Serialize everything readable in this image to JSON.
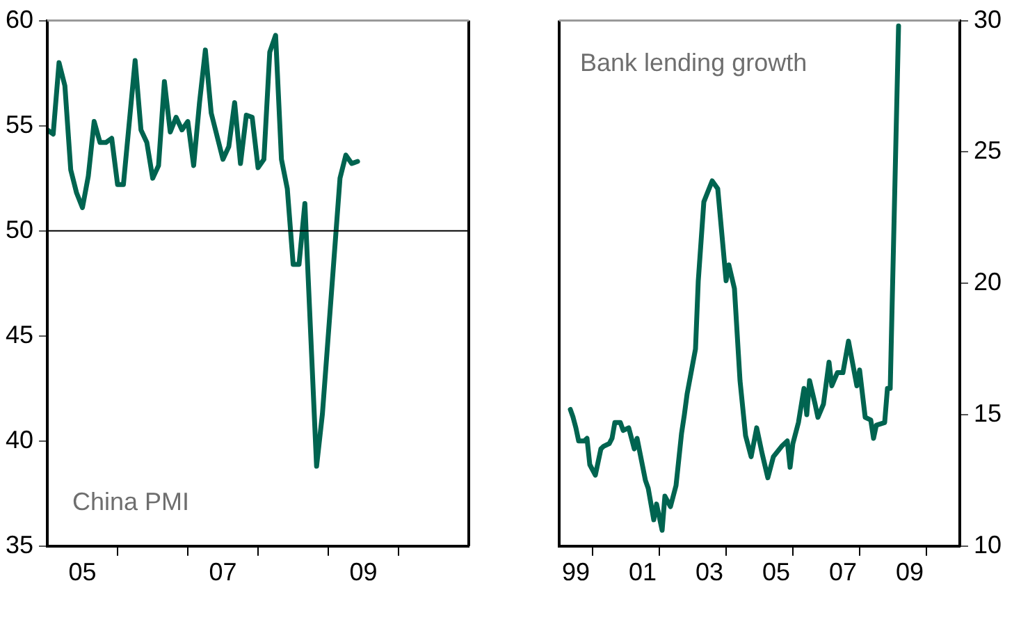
{
  "chart_data": [
    {
      "type": "line",
      "title": "China PMI",
      "xlim": [
        "2005",
        "2011"
      ],
      "ylim": [
        35,
        60
      ],
      "xticks": [
        {
          "value": "2005-07",
          "label": "05"
        },
        {
          "value": "2006",
          "label": null
        },
        {
          "value": "2007",
          "label": null
        },
        {
          "value": "2007-07",
          "label": "07"
        },
        {
          "value": "2008",
          "label": null
        },
        {
          "value": "2009",
          "label": null
        },
        {
          "value": "2009-07",
          "label": "09"
        },
        {
          "value": "2010",
          "label": null
        }
      ],
      "yticks": [
        35,
        40,
        45,
        50,
        55,
        60
      ],
      "grid": false,
      "legend": false,
      "marker": "none",
      "line_style": "solid",
      "ref_lines": [
        {
          "axis": "y",
          "value": 50,
          "color": "#000000"
        }
      ],
      "series": [
        {
          "color": "#006450",
          "x": [
            "2005-01",
            "2005-02",
            "2005-03",
            "2005-04",
            "2005-05",
            "2005-06",
            "2005-07",
            "2005-08",
            "2005-09",
            "2005-10",
            "2005-11",
            "2005-12",
            "2006-01",
            "2006-02",
            "2006-04",
            "2006-05",
            "2006-06",
            "2006-07",
            "2006-08",
            "2006-09",
            "2006-10",
            "2006-11",
            "2006-12",
            "2007-01",
            "2007-02",
            "2007-03",
            "2007-04",
            "2007-05",
            "2007-07",
            "2007-08",
            "2007-09",
            "2007-10",
            "2007-11",
            "2007-12",
            "2008-01",
            "2008-02",
            "2008-03",
            "2008-04",
            "2008-05",
            "2008-06",
            "2008-07",
            "2008-08",
            "2008-09",
            "2008-11",
            "2008-12",
            "2009-03",
            "2009-04",
            "2009-05",
            "2009-06"
          ],
          "values": [
            54.8,
            54.6,
            58,
            56.9,
            52.9,
            51.8,
            51.1,
            52.6,
            55.2,
            54.2,
            54.2,
            54.4,
            52.2,
            52.2,
            58.1,
            54.8,
            54.2,
            52.5,
            53.1,
            57.1,
            54.7,
            55.4,
            54.8,
            55.2,
            53.1,
            56.1,
            58.6,
            55.6,
            53.4,
            54,
            56.1,
            53.2,
            55.5,
            55.4,
            53,
            53.4,
            58.5,
            59.3,
            53.4,
            52,
            48.4,
            48.4,
            51.3,
            38.8,
            41.3,
            52.5,
            53.6,
            53.2,
            53.3
          ]
        }
      ]
    },
    {
      "type": "line",
      "title": "Bank lending growth",
      "xlim": [
        "1999",
        "2011"
      ],
      "y2lim": [
        10,
        30
      ],
      "xticks": [
        {
          "value": "1999-07",
          "label": "99"
        },
        {
          "value": "2000",
          "label": null
        },
        {
          "value": "2001-07",
          "label": "01"
        },
        {
          "value": "2002",
          "label": null
        },
        {
          "value": "2003-07",
          "label": "03"
        },
        {
          "value": "2004",
          "label": null
        },
        {
          "value": "2005-07",
          "label": "05"
        },
        {
          "value": "2006",
          "label": null
        },
        {
          "value": "2007-07",
          "label": "07"
        },
        {
          "value": "2008",
          "label": null
        },
        {
          "value": "2009-07",
          "label": "09"
        },
        {
          "value": "2010",
          "label": null
        }
      ],
      "y2ticks": [
        10,
        15,
        20,
        25,
        30
      ],
      "grid": false,
      "legend": false,
      "marker": "none",
      "line_style": "solid",
      "series": [
        {
          "color": "#006450",
          "axis": "y2",
          "x": [
            "1999-05",
            "1999-06",
            "1999-07",
            "1999-08",
            "1999-10",
            "1999-11",
            "1999-12",
            "2000-02",
            "2000-04",
            "2000-05",
            "2000-07",
            "2000-08",
            "2000-09",
            "2000-11",
            "2000-12",
            "2001-02",
            "2001-04",
            "2001-05",
            "2001-08",
            "2001-09",
            "2001-11",
            "2001-12",
            "2002-02",
            "2002-03",
            "2002-05",
            "2002-07",
            "2002-09",
            "2002-10",
            "2002-11",
            "2003-02",
            "2003-03",
            "2003-05",
            "2003-08",
            "2003-10",
            "2004-01",
            "2004-02",
            "2004-04",
            "2004-06",
            "2004-08",
            "2004-10",
            "2004-12",
            "2005-02",
            "2005-04",
            "2005-06",
            "2005-09",
            "2005-11",
            "2005-12",
            "2006-01",
            "2006-03",
            "2006-05",
            "2006-06",
            "2006-07",
            "2006-09",
            "2006-10",
            "2006-12",
            "2007-02",
            "2007-03",
            "2007-05",
            "2007-07",
            "2007-09",
            "2007-12",
            "2008-01",
            "2008-03",
            "2008-05",
            "2008-06",
            "2008-07",
            "2008-10",
            "2008-11",
            "2008-12",
            "2009-03"
          ],
          "values": [
            15.2,
            14.9,
            14.5,
            14,
            14,
            14.1,
            13.1,
            12.7,
            13.7,
            13.8,
            13.9,
            14.1,
            14.7,
            14.7,
            14.4,
            14.5,
            13.7,
            14.1,
            12.5,
            12.2,
            11,
            11.6,
            10.6,
            11.9,
            11.5,
            12.3,
            14.3,
            15,
            15.8,
            17.5,
            20.1,
            23.1,
            23.9,
            23.6,
            20.1,
            20.7,
            19.8,
            16.3,
            14.2,
            13.4,
            14.5,
            13.5,
            12.6,
            13.4,
            13.8,
            14,
            13,
            13.9,
            14.7,
            16,
            15,
            16.3,
            15.4,
            14.9,
            15.4,
            17,
            16.1,
            16.6,
            16.6,
            17.8,
            16.1,
            16.7,
            14.9,
            14.8,
            14.1,
            14.6,
            14.7,
            16,
            16,
            29.8
          ]
        }
      ]
    }
  ]
}
